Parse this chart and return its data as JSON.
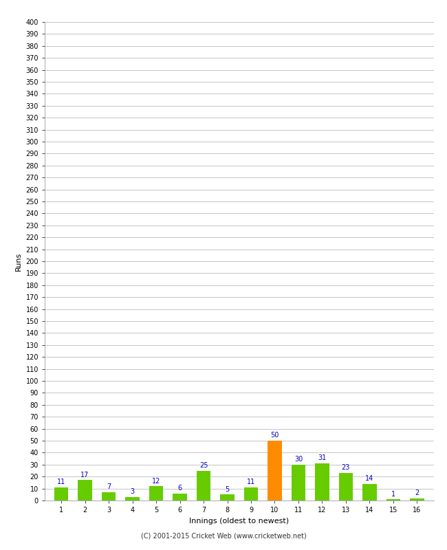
{
  "xlabel": "Innings (oldest to newest)",
  "ylabel": "Runs",
  "innings": [
    1,
    2,
    3,
    4,
    5,
    6,
    7,
    8,
    9,
    10,
    11,
    12,
    13,
    14,
    15,
    16
  ],
  "values": [
    11,
    17,
    7,
    3,
    12,
    6,
    25,
    5,
    11,
    50,
    30,
    31,
    23,
    14,
    1,
    2
  ],
  "bar_colors": [
    "#66cc00",
    "#66cc00",
    "#66cc00",
    "#66cc00",
    "#66cc00",
    "#66cc00",
    "#66cc00",
    "#66cc00",
    "#66cc00",
    "#ff8c00",
    "#66cc00",
    "#66cc00",
    "#66cc00",
    "#66cc00",
    "#66cc00",
    "#66cc00"
  ],
  "label_color": "#0000cc",
  "ylim": [
    0,
    400
  ],
  "yticks": [
    0,
    10,
    20,
    30,
    40,
    50,
    60,
    70,
    80,
    90,
    100,
    110,
    120,
    130,
    140,
    150,
    160,
    170,
    180,
    190,
    200,
    210,
    220,
    230,
    240,
    250,
    260,
    270,
    280,
    290,
    300,
    310,
    320,
    330,
    340,
    350,
    360,
    370,
    380,
    390,
    400
  ],
  "footer": "(C) 2001-2015 Cricket Web (www.cricketweb.net)",
  "background_color": "#ffffff",
  "grid_color": "#bbbbbb",
  "label_fontsize": 7,
  "axis_tick_fontsize": 7,
  "axis_label_fontsize": 8,
  "footer_fontsize": 7,
  "bar_width": 0.6
}
